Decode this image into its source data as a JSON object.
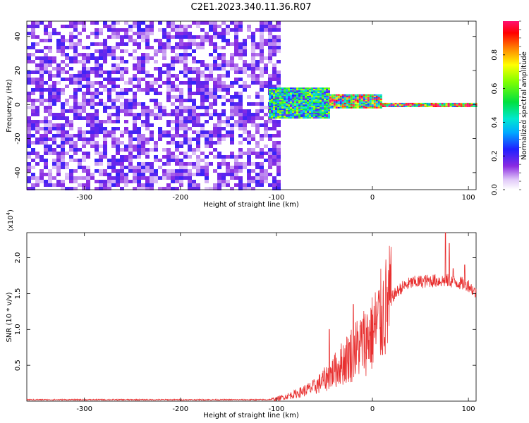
{
  "title": "C2E1.2023.340.11.36.R07",
  "chart_data": [
    {
      "type": "heatmap",
      "xlabel": "Height of straight line (km)",
      "ylabel": "Frequency (Hz)",
      "xlim": [
        -360,
        108
      ],
      "ylim": [
        -50,
        49
      ],
      "xticks": [
        -300,
        -200,
        -100,
        0,
        100
      ],
      "xtick_labels": [
        "-300",
        "-200",
        "-100",
        "0",
        "100"
      ],
      "yticks": [
        -40,
        -20,
        0,
        20,
        40
      ],
      "ytick_labels": [
        "-40",
        "-20",
        "0",
        "20",
        "40"
      ],
      "colorbar": {
        "label": "Normalized spectral amplitude",
        "range": [
          0,
          1
        ],
        "ticks": [
          0.0,
          0.2,
          0.4,
          0.6,
          0.8
        ],
        "tick_labels": [
          "0.0",
          "0.2",
          "0.4",
          "0.6",
          "0.8"
        ]
      },
      "regions": [
        {
          "x_start": -360,
          "x_end": -98,
          "f_min": -50,
          "f_max": 49,
          "amplitude": 0.15
        },
        {
          "x_start": -108,
          "x_end": -45,
          "f_min": -8,
          "f_max": 10,
          "amplitude": 0.5
        },
        {
          "x_start": -45,
          "x_end": 10,
          "f_min": -2,
          "f_max": 6,
          "amplitude": 0.75
        },
        {
          "x_start": 10,
          "x_end": 108,
          "f_min": -1,
          "f_max": 1,
          "amplitude": 0.9
        }
      ],
      "grid": false
    },
    {
      "type": "line",
      "xlabel": "Height of straight line (km)",
      "ylabel": "SNR (10 * v/v)",
      "y_multiplier": "(x10",
      "y_exponent": "4",
      "y_multiplier_close": ")",
      "xlim": [
        -360,
        108
      ],
      "ylim": [
        0,
        2.35
      ],
      "xticks": [
        -300,
        -200,
        -100,
        0,
        100
      ],
      "xtick_labels": [
        "-300",
        "-200",
        "-100",
        "0",
        "100"
      ],
      "yticks": [
        0.5,
        1.0,
        1.5,
        2.0
      ],
      "ytick_labels": [
        "0.5",
        "1.0",
        "1.5",
        "2.0"
      ],
      "color": "#e83030",
      "trend": {
        "x": [
          -360,
          -110,
          -100,
          -80,
          -60,
          -45,
          -30,
          -15,
          0,
          10,
          20,
          30,
          40,
          60,
          80,
          100,
          108
        ],
        "y": [
          0.02,
          0.02,
          0.03,
          0.1,
          0.2,
          0.35,
          0.55,
          0.75,
          0.95,
          1.2,
          1.45,
          1.58,
          1.65,
          1.68,
          1.68,
          1.62,
          1.5
        ]
      },
      "spikes": [
        {
          "x": 76,
          "y": 2.35
        },
        {
          "x": 80,
          "y": 2.2
        },
        {
          "x": 84,
          "y": 1.85
        },
        {
          "x": 96,
          "y": 1.9
        },
        {
          "x": -45,
          "y": 1.0
        },
        {
          "x": -20,
          "y": 1.35
        }
      ],
      "grid": false
    }
  ]
}
